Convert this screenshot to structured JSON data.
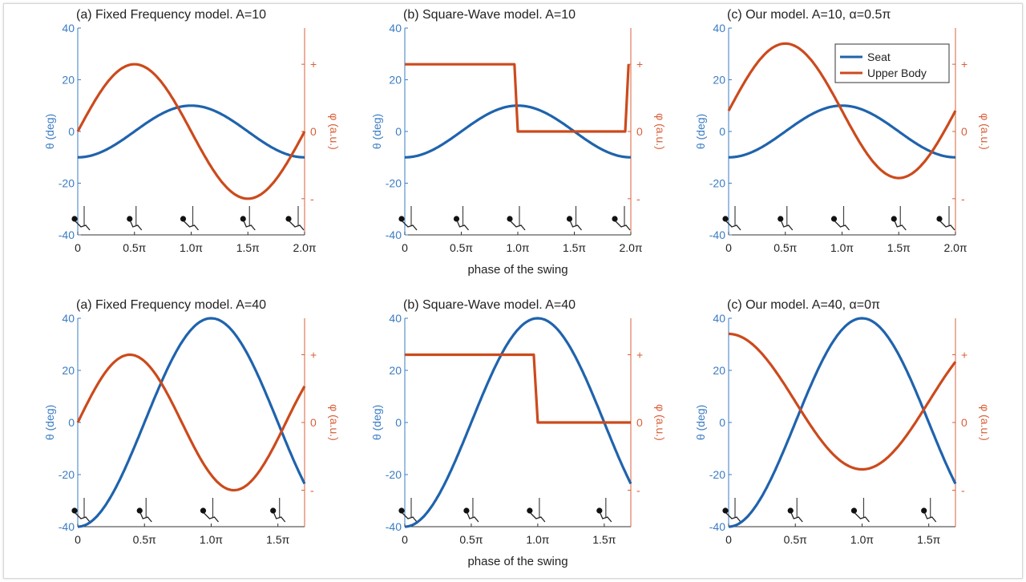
{
  "colors": {
    "seat": "#1f63ad",
    "upper": "#cc4a1c",
    "left_axis": "#3a7cc4",
    "right_axis": "#d8603a",
    "text": "#222222"
  },
  "shared_xlabel": "phase of the swing",
  "legend": {
    "placement": "top-right of panel (c), top row",
    "entries": [
      "Seat",
      "Upper Body"
    ]
  },
  "chart_data": [
    {
      "id": "top-a",
      "type": "line",
      "title": "(a) Fixed Frequency model. A=10",
      "xlim": [
        0,
        2.0
      ],
      "ylim": [
        -40,
        40
      ],
      "xticks": [
        "0",
        "0.5π",
        "1.0π",
        "1.5π",
        "2.0π"
      ],
      "yticks": [
        "40",
        "20",
        "0",
        "-20",
        "-40"
      ],
      "ylabel": "θ (deg)",
      "ylabel2": "φ (a.u.)",
      "yticks2": [
        "+",
        "0",
        "-"
      ],
      "xlabel": "",
      "series": [
        {
          "name": "Seat",
          "kind": "seat",
          "amp": 10,
          "x": [
            0,
            0.5,
            1.0,
            1.5,
            2.0
          ],
          "y": [
            -10,
            0,
            10,
            0,
            -10
          ]
        },
        {
          "name": "Upper Body",
          "kind": "sine",
          "amp": 26,
          "x": [
            0,
            0.5,
            1.0,
            1.5,
            2.0
          ],
          "y": [
            0,
            26,
            0,
            -26,
            0
          ]
        }
      ]
    },
    {
      "id": "top-b",
      "type": "line",
      "title": "(b) Square-Wave model. A=10",
      "xlim": [
        0,
        2.0
      ],
      "ylim": [
        -40,
        40
      ],
      "xticks": [
        "0",
        "0.5π",
        "1.0π",
        "1.5π",
        "2.0π"
      ],
      "yticks": [
        "40",
        "20",
        "0",
        "-20",
        "-40"
      ],
      "ylabel": "θ (deg)",
      "ylabel2": "φ (a.u.)",
      "yticks2": [
        "+",
        "0",
        "-"
      ],
      "xlabel": "phase of the swing",
      "series": [
        {
          "name": "Seat",
          "kind": "seat",
          "amp": 10,
          "x": [
            0,
            0.5,
            1.0,
            1.5,
            2.0
          ],
          "y": [
            -10,
            0,
            10,
            0,
            -10
          ]
        },
        {
          "name": "Upper Body",
          "kind": "points",
          "x": [
            0,
            0.97,
            1.0,
            1.95,
            1.98
          ],
          "y": [
            26,
            26,
            0,
            0,
            26
          ]
        }
      ]
    },
    {
      "id": "top-c",
      "type": "line",
      "title": "(c) Our model. A=10, α=0.5π",
      "xlim": [
        0,
        2.0
      ],
      "ylim": [
        -40,
        40
      ],
      "xticks": [
        "0",
        "0.5π",
        "1.0π",
        "1.5π",
        "2.0π"
      ],
      "yticks": [
        "40",
        "20",
        "0",
        "-20",
        "-40"
      ],
      "ylabel": "θ (deg)",
      "ylabel2": "φ (a.u.)",
      "yticks2": [
        "+",
        "0",
        "-"
      ],
      "xlabel": "",
      "legend": true,
      "series": [
        {
          "name": "Seat",
          "kind": "seat",
          "amp": 10,
          "x": [
            0,
            0.5,
            1.0,
            1.5,
            2.0
          ],
          "y": [
            -10,
            0,
            10,
            0,
            -10
          ]
        },
        {
          "name": "Upper Body",
          "kind": "sine",
          "offset": 8,
          "amp": 26,
          "x": [
            0,
            0.5,
            1.0,
            1.5,
            2.0
          ],
          "y": [
            8,
            34,
            8,
            -18,
            8
          ]
        }
      ]
    },
    {
      "id": "bot-a",
      "type": "line",
      "title": "(a) Fixed Frequency model. A=40",
      "xlim": [
        0,
        1.7
      ],
      "ylim": [
        -40,
        40
      ],
      "xticks": [
        "0",
        "0.5π",
        "1.0π",
        "1.5π"
      ],
      "yticks": [
        "40",
        "20",
        "0",
        "-20",
        "-40"
      ],
      "ylabel": "θ (deg)",
      "ylabel2": "φ (a.u.)",
      "yticks2": [
        "+",
        "0",
        "-"
      ],
      "xlabel": "",
      "series": [
        {
          "name": "Seat",
          "kind": "seat",
          "amp": 40,
          "x": [
            0,
            0.5,
            1.0,
            1.5,
            1.7
          ],
          "y": [
            -40,
            0,
            40,
            0,
            -23
          ]
        },
        {
          "name": "Upper Body",
          "kind": "period",
          "period": 1.56,
          "amp": 26,
          "x": [
            0,
            0.39,
            0.78,
            1.17,
            1.56
          ],
          "y": [
            0,
            26,
            0,
            -26,
            0
          ]
        }
      ]
    },
    {
      "id": "bot-b",
      "type": "line",
      "title": "(b) Square-Wave model. A=40",
      "xlim": [
        0,
        1.7
      ],
      "ylim": [
        -40,
        40
      ],
      "xticks": [
        "0",
        "0.5π",
        "1.0π",
        "1.5π"
      ],
      "yticks": [
        "40",
        "20",
        "0",
        "-20",
        "-40"
      ],
      "ylabel": "θ (deg)",
      "ylabel2": "φ (a.u.)",
      "yticks2": [
        "+",
        "0",
        "-"
      ],
      "xlabel": "phase of the swing",
      "series": [
        {
          "name": "Seat",
          "kind": "seat",
          "amp": 40,
          "x": [
            0,
            0.5,
            1.0,
            1.5,
            1.7
          ],
          "y": [
            -40,
            0,
            40,
            0,
            -23
          ]
        },
        {
          "name": "Upper Body",
          "kind": "points",
          "x": [
            0,
            0.97,
            1.0,
            1.7
          ],
          "y": [
            26,
            26,
            0,
            0
          ]
        }
      ]
    },
    {
      "id": "bot-c",
      "type": "line",
      "title": "(c) Our model. A=40, α=0π",
      "xlim": [
        0,
        1.7
      ],
      "ylim": [
        -40,
        40
      ],
      "xticks": [
        "0",
        "0.5π",
        "1.0π",
        "1.5π"
      ],
      "yticks": [
        "40",
        "20",
        "0",
        "-20",
        "-40"
      ],
      "ylabel": "θ (deg)",
      "ylabel2": "φ (a.u.)",
      "yticks2": [
        "+",
        "0",
        "-"
      ],
      "xlabel": "",
      "series": [
        {
          "name": "Seat",
          "kind": "seat",
          "amp": 40,
          "x": [
            0,
            0.5,
            1.0,
            1.5,
            1.7
          ],
          "y": [
            -40,
            0,
            40,
            0,
            -23
          ]
        },
        {
          "name": "Upper Body",
          "kind": "cos",
          "offset": 8,
          "amp": 26,
          "x": [
            0,
            0.5,
            1.0,
            1.5,
            1.7
          ],
          "y": [
            34,
            8,
            -18,
            8,
            24
          ]
        }
      ]
    }
  ]
}
